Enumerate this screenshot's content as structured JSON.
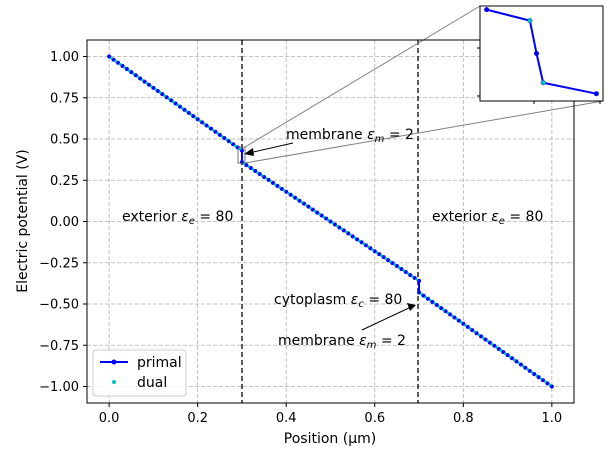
{
  "chart_data": {
    "type": "line",
    "xlabel": "Position (μm)",
    "ylabel": "Electric potential (V)",
    "xlim": [
      -0.05,
      1.05
    ],
    "ylim": [
      -1.1,
      1.1
    ],
    "xticks": [
      0.0,
      0.2,
      0.4,
      0.6,
      0.8,
      1.0
    ],
    "xtick_labels": [
      "0.0",
      "0.2",
      "0.4",
      "0.6",
      "0.8",
      "1.0"
    ],
    "yticks": [
      1.0,
      0.75,
      0.5,
      0.25,
      0.0,
      -0.25,
      -0.5,
      -0.75,
      -1.0
    ],
    "ytick_labels": [
      "1.00",
      "0.75",
      "0.50",
      "0.25",
      "0.00",
      "−0.25",
      "−0.50",
      "−0.75",
      "−1.00"
    ],
    "grid": true,
    "legend_position": "lower-left",
    "series": [
      {
        "name": "primal",
        "color": "#0000ff",
        "style": "line-with-dot-markers",
        "x": [
          0.0,
          0.3,
          0.3,
          0.7,
          0.7,
          1.0
        ],
        "y": [
          1.0,
          0.43,
          0.36,
          -0.36,
          -0.43,
          -1.0
        ]
      },
      {
        "name": "dual",
        "color": "#00bfbf",
        "style": "dot-markers",
        "x": [
          0.0,
          0.3,
          0.3,
          0.7,
          0.7,
          1.0
        ],
        "y": [
          1.0,
          0.43,
          0.36,
          -0.36,
          -0.43,
          -1.0
        ]
      }
    ],
    "membranes_x": [
      0.3,
      0.7
    ],
    "annotations": {
      "exterior_left": "exterior",
      "exterior_right": "exterior",
      "membrane_top": "membrane",
      "membrane_bottom": "membrane",
      "cytoplasm": "cytoplasm",
      "eps_e": "= 80",
      "eps_m": "= 2",
      "eps_c": "= 80"
    },
    "inset": {
      "description": "zoom on the membrane jump at x = 0.3",
      "primal_points": [
        [
          0.285,
          0.46
        ],
        [
          0.298,
          0.445
        ],
        [
          0.3,
          0.4
        ],
        [
          0.302,
          0.36
        ],
        [
          0.318,
          0.345
        ]
      ],
      "dual_points": [
        [
          0.298,
          0.445
        ],
        [
          0.302,
          0.36
        ]
      ]
    }
  }
}
